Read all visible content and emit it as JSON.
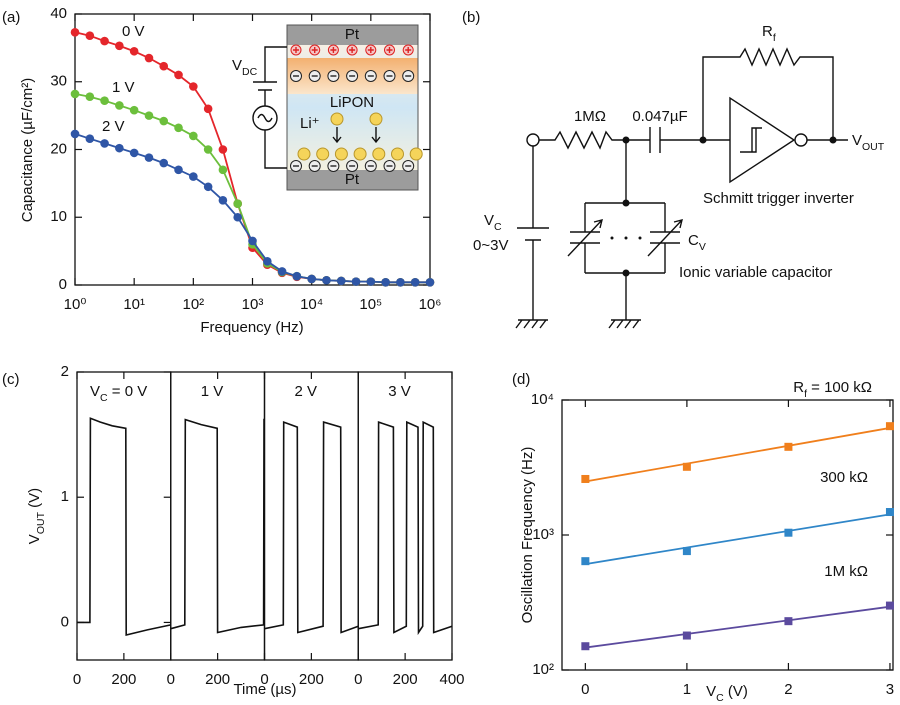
{
  "chart_data": [
    {
      "panel_label": "(a)",
      "type": "line",
      "xlabel": "Frequency (Hz)",
      "ylabel": "Capacitance (µF/cm²)",
      "xscale": "log",
      "x": [
        1,
        1.78,
        3.16,
        5.62,
        10,
        17.8,
        31.6,
        56.2,
        100,
        178,
        316,
        562,
        1000,
        1780,
        3160,
        5620,
        10000,
        17800,
        31600,
        56200,
        100000,
        178000,
        316000,
        562000,
        1000000
      ],
      "xlim": [
        1,
        1000000
      ],
      "xticks": [
        {
          "value": 1,
          "label": "10⁰"
        },
        {
          "value": 10,
          "label": "10¹"
        },
        {
          "value": 100,
          "label": "10²"
        },
        {
          "value": 1000,
          "label": "10³"
        },
        {
          "value": 10000,
          "label": "10⁴"
        },
        {
          "value": 100000,
          "label": "10⁵"
        },
        {
          "value": 1000000,
          "label": "10⁶"
        }
      ],
      "ylim": [
        0,
        40
      ],
      "yticks": [
        0,
        10,
        20,
        30,
        40
      ],
      "series": [
        {
          "name": "0 V",
          "color": "#e4262b",
          "values": [
            37.3,
            36.8,
            36.0,
            35.3,
            34.5,
            33.5,
            32.3,
            31.0,
            29.3,
            26.0,
            20.0,
            12.0,
            5.5,
            3.0,
            1.8,
            1.2,
            0.9,
            0.7,
            0.6,
            0.5,
            0.5,
            0.4,
            0.4,
            0.4,
            0.4
          ]
        },
        {
          "name": "1 V",
          "color": "#6cbf3c",
          "values": [
            28.2,
            27.8,
            27.2,
            26.5,
            25.8,
            25.0,
            24.2,
            23.2,
            22.0,
            20.0,
            17.0,
            12.0,
            6.0,
            3.2,
            1.9,
            1.3,
            0.9,
            0.7,
            0.6,
            0.5,
            0.5,
            0.4,
            0.4,
            0.4,
            0.4
          ]
        },
        {
          "name": "2 V",
          "color": "#2f56a6",
          "values": [
            22.3,
            21.6,
            20.9,
            20.2,
            19.5,
            18.8,
            18.0,
            17.0,
            16.0,
            14.5,
            12.5,
            10.0,
            6.5,
            3.5,
            2.0,
            1.3,
            0.9,
            0.7,
            0.6,
            0.5,
            0.5,
            0.4,
            0.4,
            0.4,
            0.4
          ]
        }
      ],
      "inset": {
        "top": "Pt",
        "middle": "LiPON",
        "bottom": "Pt",
        "source": [
          "V",
          "DC"
        ],
        "ion": "Li⁺"
      }
    },
    {
      "panel_label": "(c)",
      "type": "line",
      "facets": true,
      "xlabel": "Time (µs)",
      "ylabel": [
        "V",
        "OUT",
        " (V)"
      ],
      "color": "#111111",
      "xlim": [
        0,
        400
      ],
      "xticks": [
        0,
        200,
        400
      ],
      "ylim": [
        -0.3,
        2
      ],
      "yticks": [
        0,
        1,
        2
      ],
      "series": [
        {
          "name": [
            "V",
            "C",
            " = 0 V"
          ],
          "x": [
            0,
            55,
            57,
            100,
            150,
            208,
            210,
            300,
            400
          ],
          "values": [
            0,
            0,
            1.63,
            1.6,
            1.57,
            1.55,
            -0.1,
            -0.06,
            -0.02
          ]
        },
        {
          "name": "1 V",
          "x": [
            0,
            60,
            62,
            130,
            198,
            200,
            300,
            396,
            398,
            400
          ],
          "values": [
            -0.05,
            -0.02,
            1.62,
            1.58,
            1.55,
            -0.08,
            -0.04,
            -0.02,
            1.62,
            1.62
          ]
        },
        {
          "name": "2 V",
          "x": [
            0,
            80,
            82,
            140,
            142,
            250,
            252,
            325,
            327,
            400
          ],
          "values": [
            -0.05,
            -0.02,
            1.6,
            1.56,
            -0.08,
            -0.03,
            1.6,
            1.56,
            -0.08,
            -0.03
          ]
        },
        {
          "name": "3 V",
          "x": [
            0,
            85,
            87,
            150,
            152,
            205,
            207,
            255,
            257,
            275,
            277,
            320,
            322,
            400
          ],
          "values": [
            -0.05,
            -0.02,
            1.6,
            1.56,
            -0.08,
            -0.03,
            1.6,
            1.56,
            -0.08,
            -0.03,
            1.6,
            1.56,
            -0.08,
            -0.03
          ]
        }
      ]
    },
    {
      "panel_label": "(d)",
      "type": "scatter",
      "trendline": true,
      "yscale": "log",
      "xlabel": [
        "V",
        "C",
        " (V)"
      ],
      "ylabel": "Oscillation Frequency (Hz)",
      "x": [
        0,
        1,
        2,
        3
      ],
      "xlim": [
        -0.23,
        3.03
      ],
      "xticks": [
        0,
        1,
        2,
        3
      ],
      "ylim": [
        100,
        10000
      ],
      "yticks": [
        {
          "value": 100,
          "label": "10²"
        },
        {
          "value": 1000,
          "label": "10³"
        },
        {
          "value": 10000,
          "label": "10⁴"
        }
      ],
      "series": [
        {
          "name": [
            "R",
            "f",
            " = 100 kΩ"
          ],
          "color": "#f07f1c",
          "values": [
            2600,
            3200,
            4500,
            6400
          ]
        },
        {
          "name": "300 kΩ",
          "color": "#2f86c8",
          "values": [
            640,
            760,
            1040,
            1480
          ]
        },
        {
          "name": "1M kΩ",
          "color": "#5b4a9e",
          "values": [
            150,
            180,
            230,
            300
          ]
        }
      ]
    }
  ],
  "diagram": {
    "panel_label": "(b)",
    "feedback_resistor": [
      "R",
      "f"
    ],
    "resistor": "1MΩ",
    "capacitor": "0.047µF",
    "output": [
      "V",
      "OUT"
    ],
    "inverter": "Schmitt trigger inverter",
    "source": [
      "V",
      "C"
    ],
    "source_range": "0~3V",
    "variable_capacitor": [
      "C",
      "V"
    ],
    "capacitor_bank": "Ionic variable capacitor"
  }
}
